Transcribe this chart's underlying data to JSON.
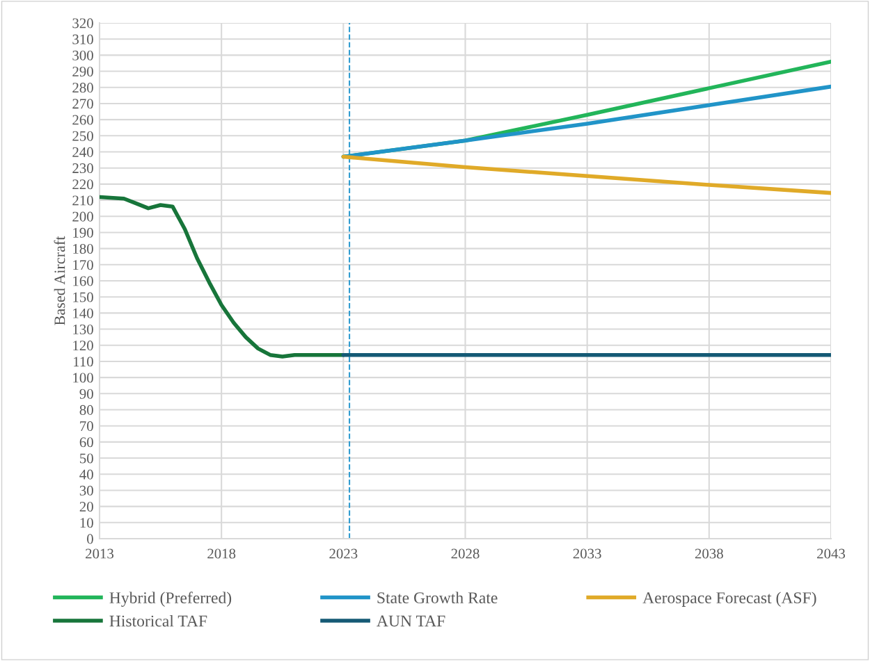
{
  "chart_data": {
    "type": "line",
    "ylabel": "Based Aircraft",
    "xlim": [
      2013,
      2043
    ],
    "xticks": [
      2013,
      2018,
      2023,
      2028,
      2033,
      2038,
      2043
    ],
    "ylim": [
      0,
      320
    ],
    "yticks": [
      0,
      10,
      20,
      30,
      40,
      50,
      60,
      70,
      80,
      90,
      100,
      110,
      120,
      130,
      140,
      150,
      160,
      170,
      180,
      190,
      200,
      210,
      220,
      230,
      240,
      250,
      260,
      270,
      280,
      290,
      300,
      310,
      320
    ],
    "grid": true,
    "legend": "bottom",
    "line_style": "solid",
    "marker": "none",
    "series": [
      {
        "name": "Hybrid (Preferred)",
        "color": "#22b55a",
        "x": [
          2023,
          2028,
          2033,
          2038,
          2043
        ],
        "values": [
          237,
          247,
          263,
          279.5,
          296
        ]
      },
      {
        "name": "State Growth Rate",
        "color": "#2194c8",
        "x": [
          2023,
          2028,
          2033,
          2038,
          2043
        ],
        "values": [
          237,
          247,
          257.5,
          269,
          280.5
        ]
      },
      {
        "name": "Aerospace Forecast (ASF)",
        "color": "#e0aa28",
        "x": [
          2023,
          2028,
          2033,
          2038,
          2043
        ],
        "values": [
          237,
          230.5,
          225,
          219.5,
          214.5
        ]
      },
      {
        "name": "Historical TAF",
        "color": "#17753a",
        "x": [
          2013,
          2014,
          2014.5,
          2015,
          2015.5,
          2016,
          2016.5,
          2017,
          2017.5,
          2018,
          2018.5,
          2019,
          2019.5,
          2020,
          2020.5,
          2021,
          2022,
          2023
        ],
        "values": [
          212,
          211,
          208,
          205,
          207,
          206,
          192,
          174,
          159,
          145,
          134,
          125,
          118,
          114,
          113,
          114,
          114,
          114
        ]
      },
      {
        "name": "AUN TAF",
        "color": "#155a75",
        "x": [
          2023,
          2043
        ],
        "values": [
          114,
          114
        ]
      }
    ],
    "ref_lines": [
      {
        "axis": "x",
        "value": 2023.25,
        "color": "#2e9bd0",
        "line_style": "dashed"
      }
    ]
  }
}
